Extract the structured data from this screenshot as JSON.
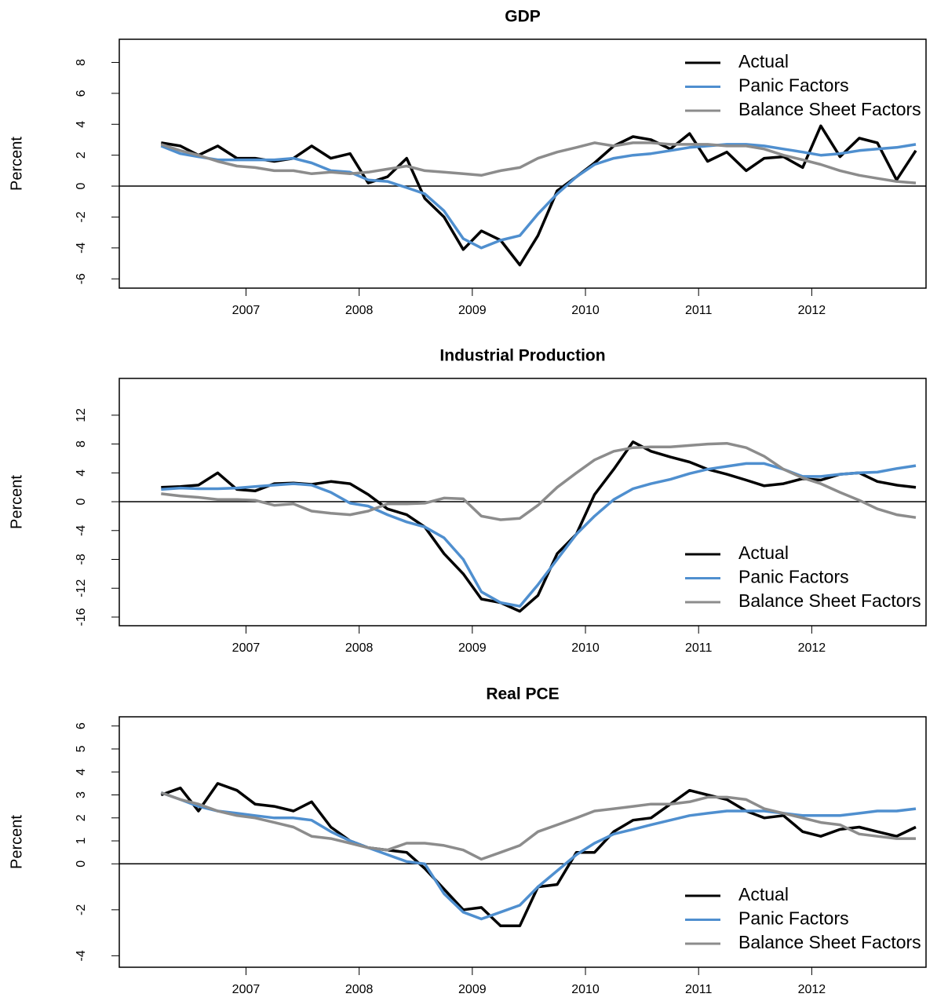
{
  "chart_data": [
    {
      "type": "line",
      "title": "GDP",
      "y_label": "Percent",
      "legend": "topright",
      "hline": 0,
      "xlim": [
        2005.88,
        2013.01
      ],
      "xticks": [
        2007,
        2008,
        2009,
        2010,
        2011,
        2012
      ],
      "ylim": [
        -6.6,
        9.5
      ],
      "yticks": [
        -6,
        -4,
        -2,
        0,
        2,
        4,
        6,
        8
      ],
      "x": [
        2006.25,
        2006.42,
        2006.58,
        2006.75,
        2006.92,
        2007.08,
        2007.25,
        2007.42,
        2007.58,
        2007.75,
        2007.92,
        2008.08,
        2008.25,
        2008.42,
        2008.58,
        2008.75,
        2008.92,
        2009.08,
        2009.25,
        2009.42,
        2009.58,
        2009.75,
        2009.92,
        2010.08,
        2010.25,
        2010.42,
        2010.58,
        2010.75,
        2010.92,
        2011.08,
        2011.25,
        2011.42,
        2011.58,
        2011.75,
        2011.92,
        2012.08,
        2012.25,
        2012.42,
        2012.58,
        2012.75,
        2012.92
      ],
      "series": [
        {
          "name": "Actual",
          "color": "#000000",
          "values": [
            2.8,
            2.6,
            2.0,
            2.6,
            1.8,
            1.8,
            1.6,
            1.8,
            2.6,
            1.8,
            2.1,
            0.2,
            0.6,
            1.8,
            -0.8,
            -2.0,
            -4.1,
            -2.9,
            -3.5,
            -5.1,
            -3.2,
            -0.3,
            0.6,
            1.5,
            2.6,
            3.2,
            3.0,
            2.4,
            3.4,
            1.6,
            2.2,
            1.0,
            1.8,
            1.9,
            1.2,
            3.9,
            1.9,
            3.1,
            2.8,
            0.4,
            2.3
          ]
        },
        {
          "name": "Panic Factors",
          "color": "#4f8fcf",
          "values": [
            2.6,
            2.1,
            1.9,
            1.7,
            1.7,
            1.7,
            1.7,
            1.8,
            1.5,
            1.0,
            0.9,
            0.4,
            0.3,
            -0.1,
            -0.5,
            -1.6,
            -3.4,
            -4.0,
            -3.5,
            -3.2,
            -1.8,
            -0.5,
            0.6,
            1.4,
            1.8,
            2.0,
            2.1,
            2.3,
            2.5,
            2.6,
            2.7,
            2.7,
            2.6,
            2.4,
            2.2,
            2.0,
            2.1,
            2.3,
            2.4,
            2.5,
            2.7
          ]
        },
        {
          "name": "Balance Sheet Factors",
          "color": "#8c8c8c",
          "values": [
            2.7,
            2.3,
            2.0,
            1.6,
            1.3,
            1.2,
            1.0,
            1.0,
            0.8,
            0.9,
            0.8,
            0.9,
            1.1,
            1.3,
            1.0,
            0.9,
            0.8,
            0.7,
            1.0,
            1.2,
            1.8,
            2.2,
            2.5,
            2.8,
            2.6,
            2.8,
            2.8,
            2.7,
            2.7,
            2.7,
            2.6,
            2.6,
            2.4,
            2.0,
            1.7,
            1.4,
            1.0,
            0.7,
            0.5,
            0.3,
            0.2
          ]
        }
      ]
    },
    {
      "type": "line",
      "title": "Industrial Production",
      "y_label": "Percent",
      "legend": "bottomright",
      "hline": 0,
      "xlim": [
        2005.88,
        2013.01
      ],
      "xticks": [
        2007,
        2008,
        2009,
        2010,
        2011,
        2012
      ],
      "ylim": [
        -17.2,
        17.1
      ],
      "yticks": [
        -16,
        -12,
        -8,
        -4,
        0,
        4,
        8,
        12
      ],
      "x": [
        2006.25,
        2006.42,
        2006.58,
        2006.75,
        2006.92,
        2007.08,
        2007.25,
        2007.42,
        2007.58,
        2007.75,
        2007.92,
        2008.08,
        2008.25,
        2008.42,
        2008.58,
        2008.75,
        2008.92,
        2009.08,
        2009.25,
        2009.42,
        2009.58,
        2009.75,
        2009.92,
        2010.08,
        2010.25,
        2010.42,
        2010.58,
        2010.75,
        2010.92,
        2011.08,
        2011.25,
        2011.42,
        2011.58,
        2011.75,
        2011.92,
        2012.08,
        2012.25,
        2012.42,
        2012.58,
        2012.75,
        2012.92
      ],
      "series": [
        {
          "name": "Actual",
          "color": "#000000",
          "values": [
            2.0,
            2.1,
            2.3,
            4.0,
            1.7,
            1.5,
            2.5,
            2.6,
            2.4,
            2.8,
            2.5,
            1.0,
            -1.0,
            -1.8,
            -3.5,
            -7.2,
            -10.0,
            -13.5,
            -14.0,
            -15.2,
            -13.0,
            -7.2,
            -4.5,
            1.0,
            4.5,
            8.3,
            7.0,
            6.2,
            5.5,
            4.5,
            3.8,
            3.0,
            2.2,
            2.5,
            3.2,
            3.0,
            3.8,
            4.0,
            2.8,
            2.3,
            2.0
          ]
        },
        {
          "name": "Panic Factors",
          "color": "#4f8fcf",
          "values": [
            1.7,
            1.9,
            1.8,
            1.8,
            1.9,
            2.1,
            2.3,
            2.5,
            2.3,
            1.3,
            -0.2,
            -0.6,
            -1.8,
            -2.8,
            -3.5,
            -5.0,
            -8.0,
            -12.5,
            -14.0,
            -14.5,
            -11.5,
            -8.0,
            -4.5,
            -2.0,
            0.3,
            1.8,
            2.5,
            3.1,
            3.9,
            4.5,
            4.9,
            5.3,
            5.3,
            4.5,
            3.5,
            3.5,
            3.8,
            4.0,
            4.1,
            4.6,
            5.0
          ]
        },
        {
          "name": "Balance Sheet Factors",
          "color": "#8c8c8c",
          "values": [
            1.1,
            0.8,
            0.6,
            0.3,
            0.3,
            0.2,
            -0.5,
            -0.3,
            -1.3,
            -1.6,
            -1.8,
            -1.3,
            -0.3,
            -0.3,
            -0.2,
            0.5,
            0.4,
            -2.0,
            -2.5,
            -2.3,
            -0.5,
            2.0,
            4.0,
            5.8,
            7.0,
            7.5,
            7.6,
            7.6,
            7.8,
            8.0,
            8.1,
            7.5,
            6.3,
            4.5,
            3.3,
            2.5,
            1.3,
            0.2,
            -1.0,
            -1.8,
            -2.2
          ]
        }
      ]
    },
    {
      "type": "line",
      "title": "Real PCE",
      "y_label": "Percent",
      "legend": "bottomright",
      "hline": 0,
      "xlim": [
        2005.88,
        2013.01
      ],
      "xticks": [
        2007,
        2008,
        2009,
        2010,
        2011,
        2012
      ],
      "ylim": [
        -4.5,
        6.4
      ],
      "yticks": [
        -4,
        -2,
        0,
        1,
        2,
        3,
        4,
        5,
        6
      ],
      "x": [
        2006.25,
        2006.42,
        2006.58,
        2006.75,
        2006.92,
        2007.08,
        2007.25,
        2007.42,
        2007.58,
        2007.75,
        2007.92,
        2008.08,
        2008.25,
        2008.42,
        2008.58,
        2008.75,
        2008.92,
        2009.08,
        2009.25,
        2009.42,
        2009.58,
        2009.75,
        2009.92,
        2010.08,
        2010.25,
        2010.42,
        2010.58,
        2010.75,
        2010.92,
        2011.08,
        2011.25,
        2011.42,
        2011.58,
        2011.75,
        2011.92,
        2012.08,
        2012.25,
        2012.42,
        2012.58,
        2012.75,
        2012.92
      ],
      "series": [
        {
          "name": "Actual",
          "color": "#000000",
          "values": [
            3.0,
            3.3,
            2.3,
            3.5,
            3.2,
            2.6,
            2.5,
            2.3,
            2.7,
            1.6,
            1.0,
            0.7,
            0.6,
            0.5,
            -0.2,
            -1.1,
            -2.0,
            -1.9,
            -2.7,
            -2.7,
            -1.0,
            -0.9,
            0.5,
            0.5,
            1.4,
            1.9,
            2.0,
            2.6,
            3.2,
            3.0,
            2.8,
            2.3,
            2.0,
            2.1,
            1.4,
            1.2,
            1.5,
            1.6,
            1.4,
            1.2,
            1.6
          ]
        },
        {
          "name": "Panic Factors",
          "color": "#4f8fcf",
          "values": [
            3.1,
            2.8,
            2.5,
            2.3,
            2.2,
            2.1,
            2.0,
            2.0,
            1.9,
            1.4,
            1.0,
            0.7,
            0.4,
            0.1,
            0.0,
            -1.3,
            -2.1,
            -2.4,
            -2.1,
            -1.8,
            -1.0,
            -0.3,
            0.4,
            0.9,
            1.3,
            1.5,
            1.7,
            1.9,
            2.1,
            2.2,
            2.3,
            2.3,
            2.3,
            2.2,
            2.1,
            2.1,
            2.1,
            2.2,
            2.3,
            2.3,
            2.4
          ]
        },
        {
          "name": "Balance Sheet Factors",
          "color": "#8c8c8c",
          "values": [
            3.1,
            2.8,
            2.6,
            2.3,
            2.1,
            2.0,
            1.8,
            1.6,
            1.2,
            1.1,
            0.9,
            0.7,
            0.6,
            0.9,
            0.9,
            0.8,
            0.6,
            0.2,
            0.5,
            0.8,
            1.4,
            1.7,
            2.0,
            2.3,
            2.4,
            2.5,
            2.6,
            2.6,
            2.7,
            2.9,
            2.9,
            2.8,
            2.4,
            2.2,
            2.0,
            1.8,
            1.7,
            1.3,
            1.2,
            1.1,
            1.1
          ]
        }
      ]
    }
  ]
}
